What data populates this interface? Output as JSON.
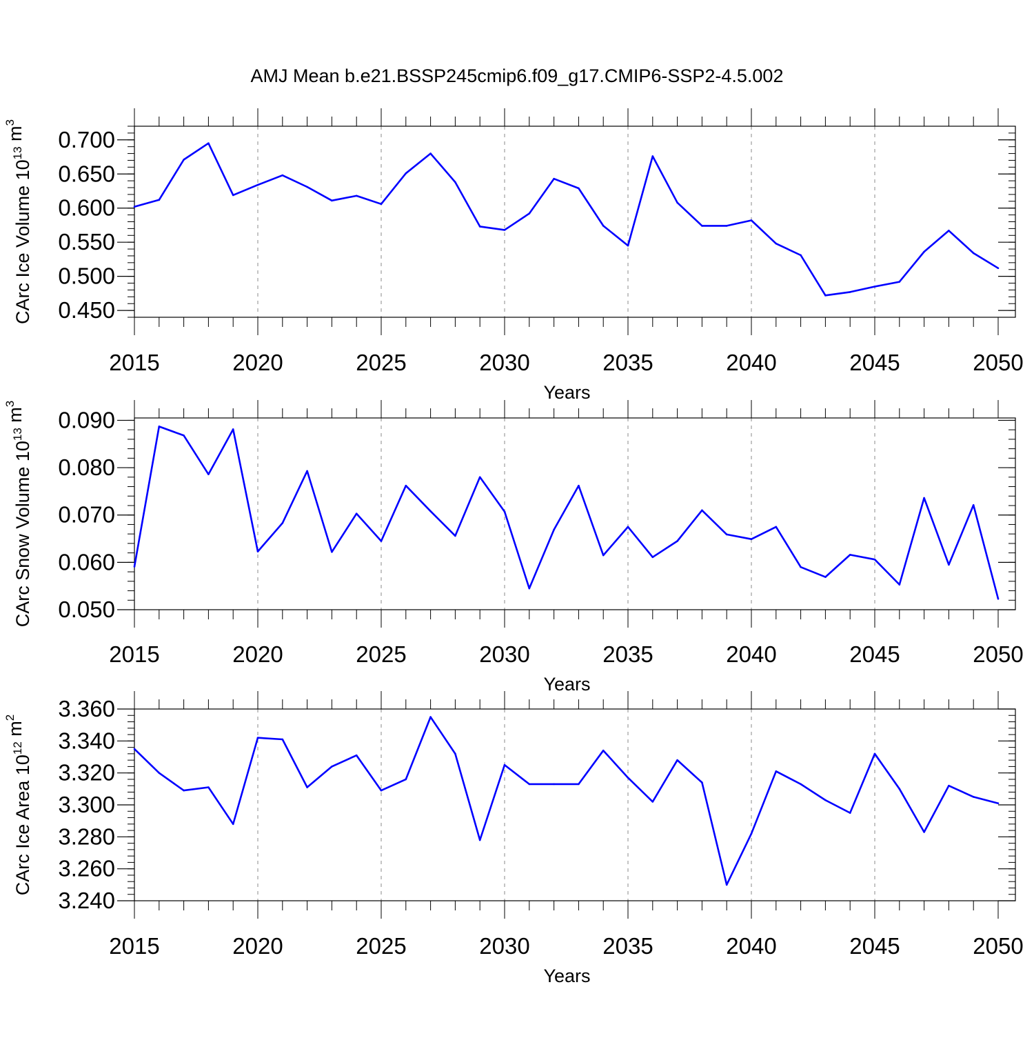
{
  "figure": {
    "title": "AMJ Mean b.e21.BSSP245cmip6.f09_g17.CMIP6-SSP2-4.5.002"
  },
  "colors": {
    "line": "#0000ff",
    "axis": "#000000",
    "grid": "#888888"
  },
  "chart_data": [
    {
      "type": "line",
      "title": "",
      "xlabel": "Years",
      "ylabel": {
        "main": "CArc Ice Volume 10",
        "exp": "13",
        "unit_base": " m",
        "unit_exp": "3"
      },
      "xlim": [
        2015,
        2050
      ],
      "ylim": [
        0.44,
        0.72
      ],
      "x_ticks": [
        2015,
        2020,
        2025,
        2030,
        2035,
        2040,
        2045,
        2050
      ],
      "x_tick_labels": [
        "2015",
        "2020",
        "2025",
        "2030",
        "2035",
        "2040",
        "2045",
        "2050"
      ],
      "y_ticks": [
        0.45,
        0.5,
        0.55,
        0.6,
        0.65,
        0.7
      ],
      "y_tick_labels": [
        "0.450",
        "0.500",
        "0.550",
        "0.600",
        "0.650",
        "0.700"
      ],
      "y_minor_step": 0.01,
      "grid": "vertical dashed at major x ticks",
      "x": [
        2015,
        2016,
        2017,
        2018,
        2019,
        2020,
        2021,
        2022,
        2023,
        2024,
        2025,
        2026,
        2027,
        2028,
        2029,
        2030,
        2031,
        2032,
        2033,
        2034,
        2035,
        2036,
        2037,
        2038,
        2039,
        2040,
        2041,
        2042,
        2043,
        2044,
        2045,
        2046,
        2047,
        2048,
        2049,
        2050
      ],
      "series": [
        {
          "values": [
            0.602,
            0.612,
            0.671,
            0.695,
            0.619,
            0.634,
            0.648,
            0.631,
            0.611,
            0.618,
            0.606,
            0.651,
            0.68,
            0.638,
            0.573,
            0.568,
            0.592,
            0.643,
            0.629,
            0.574,
            0.545,
            0.676,
            0.608,
            0.574,
            0.574,
            0.582,
            0.548,
            0.531,
            0.472,
            0.477,
            0.485,
            0.492,
            0.536,
            0.567,
            0.534,
            0.512
          ]
        }
      ]
    },
    {
      "type": "line",
      "title": "",
      "xlabel": "Years",
      "ylabel": {
        "main": "CArc Snow Volume 10",
        "exp": "13",
        "unit_base": " m",
        "unit_exp": "3"
      },
      "xlim": [
        2015,
        2050
      ],
      "ylim": [
        0.05,
        0.0905
      ],
      "x_ticks": [
        2015,
        2020,
        2025,
        2030,
        2035,
        2040,
        2045,
        2050
      ],
      "x_tick_labels": [
        "2015",
        "2020",
        "2025",
        "2030",
        "2035",
        "2040",
        "2045",
        "2050"
      ],
      "y_ticks": [
        0.05,
        0.06,
        0.07,
        0.08,
        0.09
      ],
      "y_tick_labels": [
        "0.050",
        "0.060",
        "0.070",
        "0.080",
        "0.090"
      ],
      "y_minor_step": 0.002,
      "grid": "vertical dashed at major x ticks",
      "x": [
        2015,
        2016,
        2017,
        2018,
        2019,
        2020,
        2021,
        2022,
        2023,
        2024,
        2025,
        2026,
        2027,
        2028,
        2029,
        2030,
        2031,
        2032,
        2033,
        2034,
        2035,
        2036,
        2037,
        2038,
        2039,
        2040,
        2041,
        2042,
        2043,
        2044,
        2045,
        2046,
        2047,
        2048,
        2049,
        2050
      ],
      "series": [
        {
          "values": [
            0.0591,
            0.0887,
            0.0868,
            0.0786,
            0.0881,
            0.0623,
            0.0683,
            0.0793,
            0.0622,
            0.0703,
            0.0645,
            0.0762,
            0.0708,
            0.0656,
            0.078,
            0.0707,
            0.0545,
            0.0669,
            0.0762,
            0.0615,
            0.0675,
            0.0611,
            0.0645,
            0.071,
            0.0659,
            0.0649,
            0.0675,
            0.059,
            0.0569,
            0.0616,
            0.0606,
            0.0553,
            0.0736,
            0.0595,
            0.0721,
            0.0523
          ]
        }
      ]
    },
    {
      "type": "line",
      "title": "",
      "xlabel": "Years",
      "ylabel": {
        "main": "CArc Ice Area 10",
        "exp": "12",
        "unit_base": " m",
        "unit_exp": "2"
      },
      "xlim": [
        2015,
        2050
      ],
      "ylim": [
        3.24,
        3.36
      ],
      "x_ticks": [
        2015,
        2020,
        2025,
        2030,
        2035,
        2040,
        2045,
        2050
      ],
      "x_tick_labels": [
        "2015",
        "2020",
        "2025",
        "2030",
        "2035",
        "2040",
        "2045",
        "2050"
      ],
      "y_ticks": [
        3.24,
        3.26,
        3.28,
        3.3,
        3.32,
        3.34,
        3.36
      ],
      "y_tick_labels": [
        "3.240",
        "3.260",
        "3.280",
        "3.300",
        "3.320",
        "3.340",
        "3.360"
      ],
      "y_minor_step": 0.004,
      "grid": "vertical dashed at major x ticks",
      "x": [
        2015,
        2016,
        2017,
        2018,
        2019,
        2020,
        2021,
        2022,
        2023,
        2024,
        2025,
        2026,
        2027,
        2028,
        2029,
        2030,
        2031,
        2032,
        2033,
        2034,
        2035,
        2036,
        2037,
        2038,
        2039,
        2040,
        2041,
        2042,
        2043,
        2044,
        2045,
        2046,
        2047,
        2048,
        2049,
        2050
      ],
      "series": [
        {
          "values": [
            3.335,
            3.32,
            3.309,
            3.311,
            3.288,
            3.342,
            3.341,
            3.311,
            3.324,
            3.331,
            3.309,
            3.316,
            3.355,
            3.332,
            3.278,
            3.325,
            3.313,
            3.313,
            3.313,
            3.334,
            3.317,
            3.302,
            3.328,
            3.314,
            3.25,
            3.282,
            3.321,
            3.313,
            3.303,
            3.295,
            3.332,
            3.31,
            3.283,
            3.312,
            3.305,
            3.301
          ]
        }
      ]
    }
  ]
}
